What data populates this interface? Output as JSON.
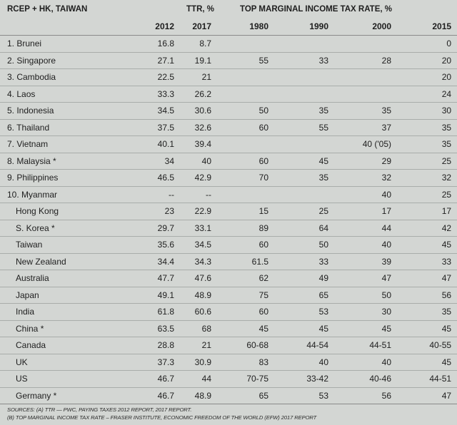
{
  "header": {
    "region_label": "RCEP + HK, TAIWAN",
    "ttr_label": "TTR, %",
    "tax_label": "TOP MARGINAL INCOME TAX RATE, %",
    "years": [
      "2012",
      "2017",
      "1980",
      "1990",
      "2000",
      "2015"
    ]
  },
  "rows": [
    {
      "country": "1. Brunei",
      "ttr2012": "16.8",
      "ttr2017": "8.7",
      "t1980": "",
      "t1990": "",
      "t2000": "",
      "t2015": "0"
    },
    {
      "country": "2. Singapore",
      "ttr2012": "27.1",
      "ttr2017": "19.1",
      "t1980": "55",
      "t1990": "33",
      "t2000": "28",
      "t2015": "20"
    },
    {
      "country": "3. Cambodia",
      "ttr2012": "22.5",
      "ttr2017": "21",
      "t1980": "",
      "t1990": "",
      "t2000": "",
      "t2015": "20"
    },
    {
      "country": "4. Laos",
      "ttr2012": "33.3",
      "ttr2017": "26.2",
      "t1980": "",
      "t1990": "",
      "t2000": "",
      "t2015": "24"
    },
    {
      "country": "5. Indonesia",
      "ttr2012": "34.5",
      "ttr2017": "30.6",
      "t1980": "50",
      "t1990": "35",
      "t2000": "35",
      "t2015": "30"
    },
    {
      "country": "6. Thailand",
      "ttr2012": "37.5",
      "ttr2017": "32.6",
      "t1980": "60",
      "t1990": "55",
      "t2000": "37",
      "t2015": "35"
    },
    {
      "country": "7. Vietnam",
      "ttr2012": "40.1",
      "ttr2017": "39.4",
      "t1980": "",
      "t1990": "",
      "t2000": "40 ('05)",
      "t2015": "35"
    },
    {
      "country": "8. Malaysia *",
      "ttr2012": "34",
      "ttr2017": "40",
      "t1980": "60",
      "t1990": "45",
      "t2000": "29",
      "t2015": "25"
    },
    {
      "country": "9. Philippines",
      "ttr2012": "46.5",
      "ttr2017": "42.9",
      "t1980": "70",
      "t1990": "35",
      "t2000": "32",
      "t2015": "32"
    },
    {
      "country": "10. Myanmar",
      "ttr2012": "--",
      "ttr2017": "--",
      "t1980": "",
      "t1990": "",
      "t2000": "40",
      "t2015": "25"
    },
    {
      "country": "Hong Kong",
      "ttr2012": "23",
      "ttr2017": "22.9",
      "t1980": "15",
      "t1990": "25",
      "t2000": "17",
      "t2015": "17"
    },
    {
      "country": "S. Korea *",
      "ttr2012": "29.7",
      "ttr2017": "33.1",
      "t1980": "89",
      "t1990": "64",
      "t2000": "44",
      "t2015": "42"
    },
    {
      "country": "Taiwan",
      "ttr2012": "35.6",
      "ttr2017": "34.5",
      "t1980": "60",
      "t1990": "50",
      "t2000": "40",
      "t2015": "45"
    },
    {
      "country": "New Zealand",
      "ttr2012": "34.4",
      "ttr2017": "34.3",
      "t1980": "61.5",
      "t1990": "33",
      "t2000": "39",
      "t2015": "33"
    },
    {
      "country": "Australia",
      "ttr2012": "47.7",
      "ttr2017": "47.6",
      "t1980": "62",
      "t1990": "49",
      "t2000": "47",
      "t2015": "47"
    },
    {
      "country": "Japan",
      "ttr2012": "49.1",
      "ttr2017": "48.9",
      "t1980": "75",
      "t1990": "65",
      "t2000": "50",
      "t2015": "56"
    },
    {
      "country": "India",
      "ttr2012": "61.8",
      "ttr2017": "60.6",
      "t1980": "60",
      "t1990": "53",
      "t2000": "30",
      "t2015": "35"
    },
    {
      "country": "China *",
      "ttr2012": "63.5",
      "ttr2017": "68",
      "t1980": "45",
      "t1990": "45",
      "t2000": "45",
      "t2015": "45"
    },
    {
      "country": "Canada",
      "ttr2012": "28.8",
      "ttr2017": "21",
      "t1980": "60-68",
      "t1990": "44-54",
      "t2000": "44-51",
      "t2015": "40-55"
    },
    {
      "country": "UK",
      "ttr2012": "37.3",
      "ttr2017": "30.9",
      "t1980": "83",
      "t1990": "40",
      "t2000": "40",
      "t2015": "45"
    },
    {
      "country": "US",
      "ttr2012": "46.7",
      "ttr2017": "44",
      "t1980": "70-75",
      "t1990": "33-42",
      "t2000": "40-46",
      "t2015": "44-51"
    },
    {
      "country": "Germany *",
      "ttr2012": "46.7",
      "ttr2017": "48.9",
      "t1980": "65",
      "t1990": "53",
      "t2000": "56",
      "t2015": "47"
    }
  ],
  "sources": {
    "line1": "SOURCES: (A) TTR — PWC, PAYING TAXES 2012 REPORT, 2017 REPORT.",
    "line2": "(B) TOP MARGINAL INCOME TAX RATE – FRASER INSTITUTE, ECONOMIC FREEDOM OF THE WORLD (EFW) 2017 REPORT"
  }
}
